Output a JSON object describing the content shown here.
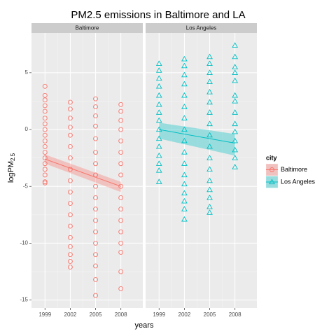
{
  "chart_data": {
    "type": "scatter",
    "title": "PM2.5 emissions in Baltimore and LA",
    "xlabel": "years",
    "ylabel": {
      "text": "logPM",
      "subscript": "2.5"
    },
    "legend_title": "city",
    "xlim": [
      1997.4,
      2010.6
    ],
    "ylim": [
      -15.7,
      8.5
    ],
    "xticks": [
      1999,
      2002,
      2005,
      2008
    ],
    "yticks": [
      -15,
      -10,
      -5,
      0,
      5
    ],
    "grid": true,
    "series": [
      {
        "name": "Baltimore",
        "color": "#F8766D",
        "marker": "circle",
        "groups": [
          {
            "x": 1999,
            "values": [
              3.8,
              3.0,
              2.6,
              2.1,
              1.6,
              1.0,
              0.5,
              0,
              -0.5,
              -1.0,
              -1.5,
              -2.0,
              -2.5,
              -3.0,
              -3.5,
              -4.0,
              -4.6,
              -4.7
            ]
          },
          {
            "x": 2002,
            "values": [
              2.4,
              1.8,
              1.0,
              0.2,
              -0.5,
              -1.5,
              -2.5,
              -3.5,
              -4.5,
              -5.5,
              -6.5,
              -7.5,
              -8.5,
              -9.5,
              -10.3,
              -11.0,
              -11.6,
              -12.1
            ]
          },
          {
            "x": 2005,
            "values": [
              2.7,
              2.0,
              1.2,
              0.3,
              -0.8,
              -2.0,
              -3.0,
              -4.0,
              -5.0,
              -6.0,
              -7.0,
              -8.0,
              -9.0,
              -10.0,
              -11.0,
              -12.0,
              -13.2,
              -14.6
            ]
          },
          {
            "x": 2008,
            "values": [
              2.2,
              1.6,
              0.8,
              0,
              -1.0,
              -2.0,
              -3.0,
              -4.0,
              -5.0,
              -6.0,
              -7.0,
              -8.0,
              -9.0,
              -10.0,
              -10.8,
              -12.5,
              -14.0
            ]
          }
        ],
        "fit": {
          "x": [
            1999,
            2008
          ],
          "values": [
            -2.6,
            -5.0
          ],
          "lower": [
            -3.0,
            -5.5
          ],
          "upper": [
            -2.2,
            -4.6
          ]
        }
      },
      {
        "name": "Los Angeles",
        "color": "#00BFC4",
        "marker": "triangle",
        "groups": [
          {
            "x": 1999,
            "values": [
              5.8,
              5.2,
              4.5,
              3.8,
              3.0,
              2.2,
              1.5,
              0.8,
              0,
              -0.8,
              -1.5,
              -2.3,
              -3.0,
              -3.6,
              -4.6
            ]
          },
          {
            "x": 2002,
            "values": [
              6.2,
              5.6,
              4.8,
              4.0,
              3.0,
              2.0,
              1.0,
              0,
              -1.0,
              -2.0,
              -3.0,
              -4.0,
              -4.8,
              -5.6,
              -6.3,
              -7.0,
              -7.9
            ]
          },
          {
            "x": 2005,
            "values": [
              6.4,
              5.8,
              5.0,
              4.2,
              3.3,
              2.4,
              1.5,
              0.5,
              -0.5,
              -1.5,
              -2.5,
              -3.5,
              -4.5,
              -5.3,
              -6.0,
              -6.8,
              -7.3
            ]
          },
          {
            "x": 2008,
            "values": [
              7.4,
              6.4,
              5.5,
              5.0,
              4.3,
              3.0,
              2.5,
              1.5,
              0.5,
              -0.2,
              -1.0,
              -1.8,
              -2.5,
              -3.3
            ]
          }
        ],
        "fit": {
          "x": [
            1999,
            2008
          ],
          "values": [
            0,
            -1.2
          ],
          "lower": [
            -0.8,
            -2.3
          ],
          "upper": [
            0.6,
            -0.4
          ]
        }
      }
    ]
  }
}
